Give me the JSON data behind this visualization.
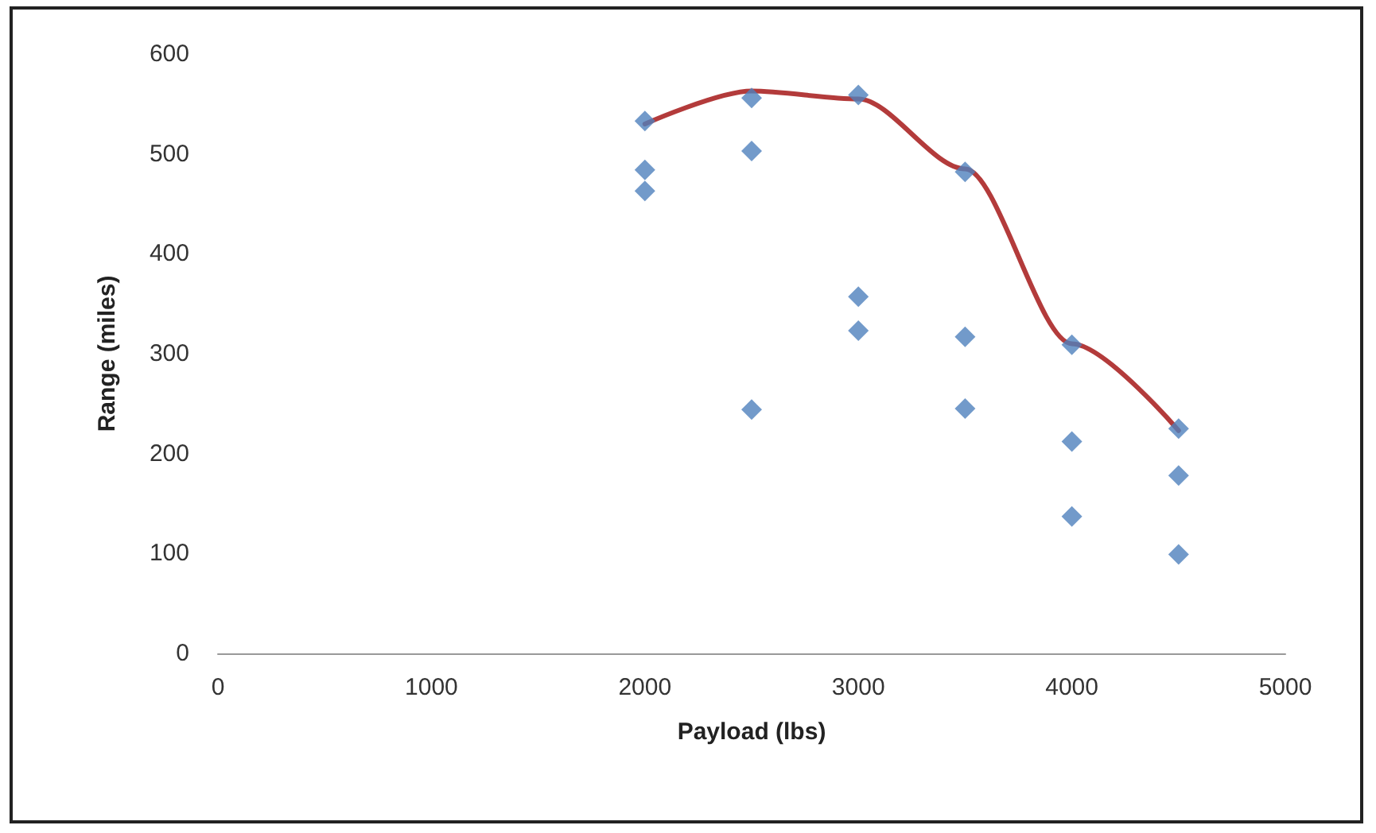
{
  "chart_data": {
    "type": "scatter",
    "xlabel": "Payload (lbs)",
    "ylabel": "Range (miles)",
    "xlim": [
      0,
      5000
    ],
    "xticks": [
      0,
      1000,
      2000,
      3000,
      4000,
      5000
    ],
    "ylim": [
      0,
      600
    ],
    "yticks": [
      0,
      100,
      200,
      300,
      400,
      500,
      600
    ],
    "grid": false,
    "marker": "diamond",
    "series": [
      {
        "color": "#4f81bd",
        "x": [
          2000,
          2000,
          2000,
          2500,
          2500,
          2500,
          3000,
          3000,
          3000,
          3500,
          3500,
          3500,
          4000,
          4000,
          4000,
          4500,
          4500,
          4500
        ],
        "values": [
          533,
          484,
          463,
          556,
          503,
          244,
          559,
          357,
          323,
          482,
          317,
          245,
          309,
          212,
          137,
          225,
          178,
          99
        ]
      },
      {
        "type": "line",
        "color": "#b33b3b",
        "marker": "none",
        "line_style": "solid",
        "x": [
          2000,
          2500,
          3000,
          3500,
          4000,
          4500
        ],
        "values": [
          530,
          563,
          555,
          485,
          310,
          223
        ]
      }
    ]
  }
}
